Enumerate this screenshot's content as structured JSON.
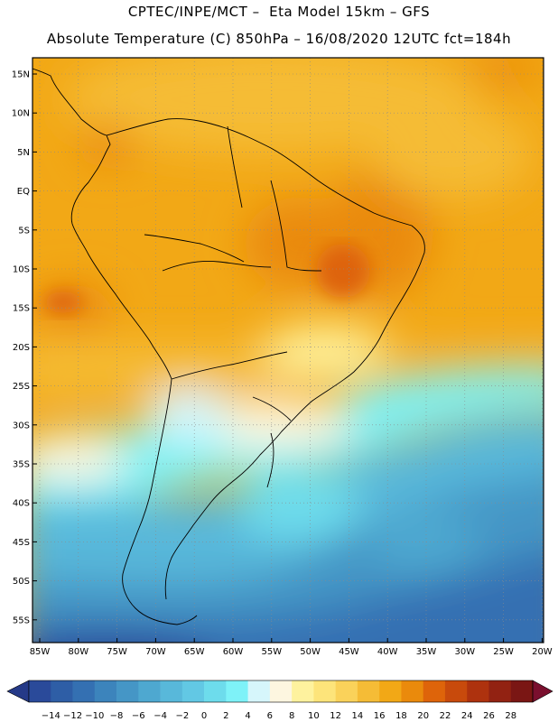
{
  "header": {
    "line1": "CPTEC/INPE/MCT –  Eta Model 15km – GFS",
    "line2": "Absolute Temperature (C) 850hPa – 16/08/2020 12UTC fct=184h"
  },
  "map": {
    "lat_labels": [
      "15N",
      "10N",
      "5N",
      "EQ",
      "5S",
      "10S",
      "15S",
      "20S",
      "25S",
      "30S",
      "35S",
      "40S",
      "45S",
      "50S",
      "55S"
    ],
    "lon_labels": [
      "85W",
      "80W",
      "75W",
      "70W",
      "65W",
      "60W",
      "55W",
      "50W",
      "45W",
      "40W",
      "35W",
      "30W",
      "25W",
      "20W"
    ]
  },
  "colorbar": {
    "labels": [
      "-14",
      "-12",
      "-10",
      "-8",
      "-6",
      "-4",
      "-2",
      "0",
      "2",
      "4",
      "6",
      "8",
      "10",
      "12",
      "14",
      "16",
      "18",
      "20",
      "22",
      "24",
      "26",
      "28"
    ],
    "colors": [
      "#2a4a9a",
      "#2e5ea6",
      "#3470b2",
      "#3c84bc",
      "#4596c6",
      "#4ea8d0",
      "#58b8da",
      "#62c8e4",
      "#6ddcec",
      "#7ef2f8",
      "#d6f6fb",
      "#fdf6e0",
      "#fef29e",
      "#fde47a",
      "#fad25a",
      "#f5bc36",
      "#f2a816",
      "#ea8a0c",
      "#de640a",
      "#c84a0c",
      "#ae320e",
      "#922212",
      "#7a1614"
    ],
    "left_arrow_color": "#253a88",
    "right_arrow_color": "#7a0f2e"
  }
}
